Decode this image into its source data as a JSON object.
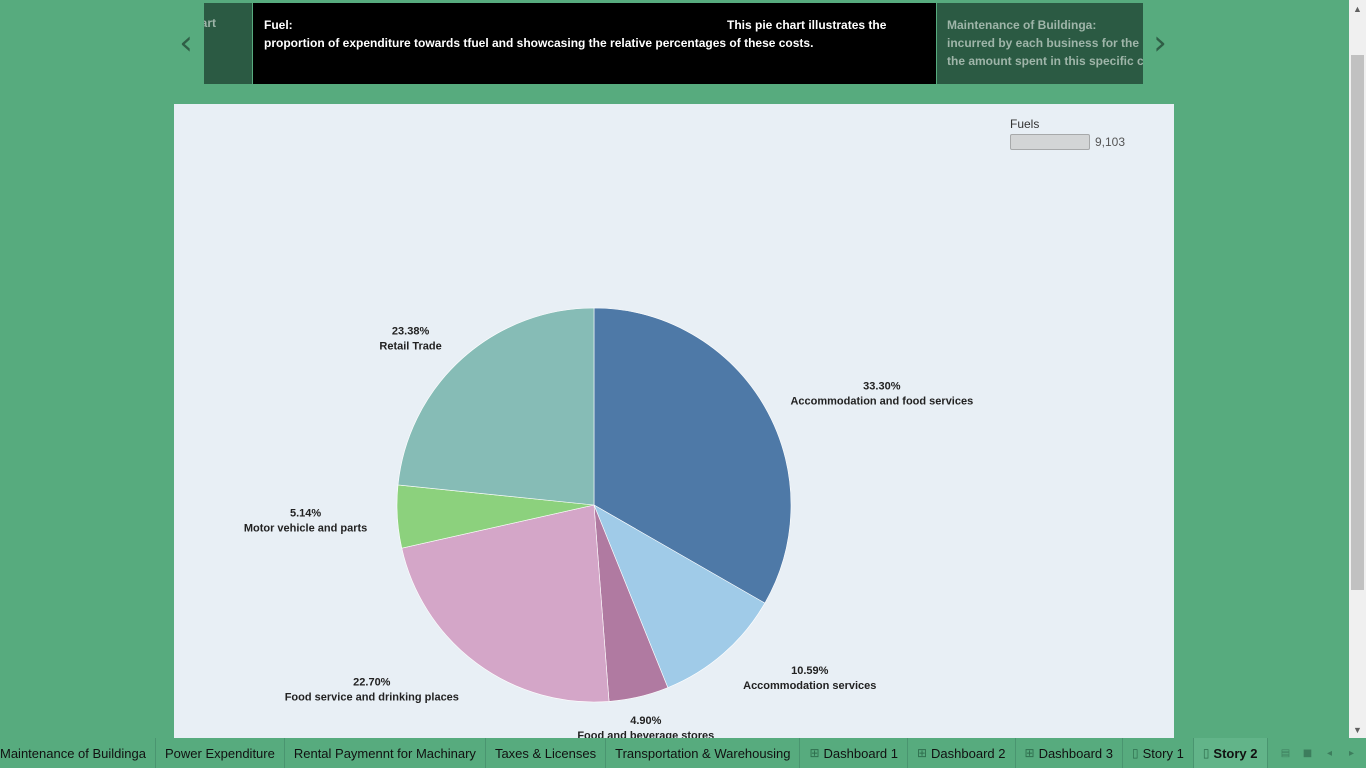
{
  "story": {
    "prev_label": "‹",
    "next_label": "›",
    "previous_point": "art",
    "active_point": {
      "title": "Fuel:",
      "lead": "This  pie chart illustrates the",
      "line2": "proportion of expenditure towards tfuel and showcasing the relative percentages of these costs."
    },
    "next_point": {
      "line1": "Maintenance of Buildinga:",
      "line2": "incurred by each business for the m",
      "line3": "the amount spent in this specific ca"
    }
  },
  "legend": {
    "title": "Fuels",
    "value": "9,103"
  },
  "chart_data": {
    "type": "pie",
    "start_angle_deg": 0,
    "direction": "clockwise",
    "slices": [
      {
        "label": "Accommodation and food services",
        "percent_label": "33.30%",
        "value": 33.3,
        "color": "#4e79a7"
      },
      {
        "label": "Accommodation services",
        "percent_label": "10.59%",
        "value": 10.59,
        "color": "#a0cbe8"
      },
      {
        "label": "Food and beverage stores",
        "percent_label": "4.90%",
        "value": 4.9,
        "color": "#b07aa1"
      },
      {
        "label": "Food service and drinking places",
        "percent_label": "22.70%",
        "value": 22.7,
        "color": "#d4a6c8"
      },
      {
        "label": "Motor vehicle and parts",
        "percent_label": "5.14%",
        "value": 5.14,
        "color": "#8cd17d"
      },
      {
        "label": "Retail Trade",
        "percent_label": "23.38%",
        "value": 23.38,
        "color": "#86bcb6"
      }
    ]
  },
  "tabs": [
    {
      "label": "Maintenance of Buildinga",
      "icon": ""
    },
    {
      "label": "Power Expenditure",
      "icon": ""
    },
    {
      "label": "Rental Paymennt for Machinary",
      "icon": ""
    },
    {
      "label": "Taxes & Licenses",
      "icon": ""
    },
    {
      "label": "Transportation & Warehousing",
      "icon": ""
    },
    {
      "label": "Dashboard 1",
      "icon": "⊞"
    },
    {
      "label": "Dashboard 2",
      "icon": "⊞"
    },
    {
      "label": "Dashboard 3",
      "icon": "⊞"
    },
    {
      "label": "Story 1",
      "icon": "▯"
    },
    {
      "label": "Story 2",
      "icon": "▯",
      "active": true
    }
  ],
  "tab_tools": [
    "show-sheet-sorter-icon",
    "show-filmstrip-icon",
    "prev-sheet-icon",
    "next-sheet-icon",
    "presentation-mode-icon",
    "device-preview-icon"
  ]
}
